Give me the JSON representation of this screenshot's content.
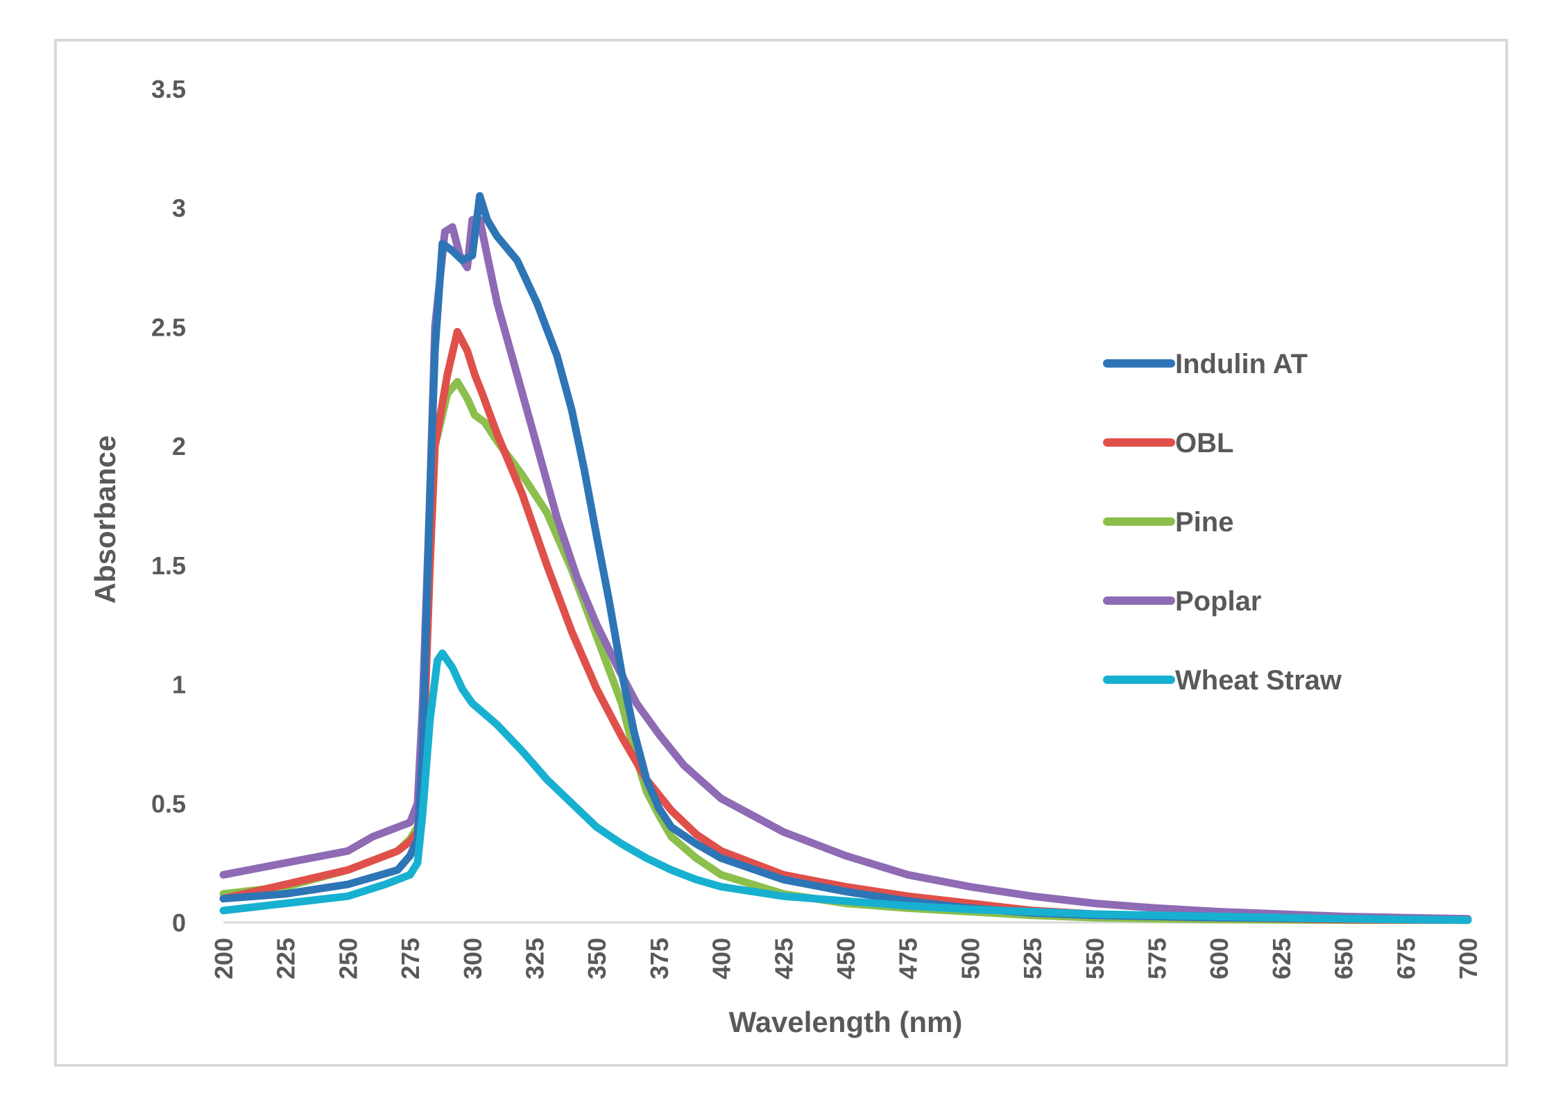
{
  "chart_data": {
    "type": "line",
    "title": "",
    "xlabel": "Wavelength (nm)",
    "ylabel": "Absorbance",
    "xlim": [
      200,
      700
    ],
    "ylim": [
      0,
      3.5
    ],
    "x_ticks": [
      "200",
      "225",
      "250",
      "275",
      "300",
      "325",
      "350",
      "375",
      "400",
      "425",
      "450",
      "475",
      "500",
      "525",
      "550",
      "575",
      "600",
      "625",
      "650",
      "675",
      "700"
    ],
    "y_ticks": [
      "0",
      "0.5",
      "1",
      "1.5",
      "2",
      "2.5",
      "3",
      "3.5"
    ],
    "grid": false,
    "legend_position": "right",
    "series": [
      {
        "name": "Indulin AT",
        "color": "#2e75b6",
        "points": [
          [
            200,
            0.1
          ],
          [
            225,
            0.12
          ],
          [
            250,
            0.16
          ],
          [
            270,
            0.22
          ],
          [
            275,
            0.28
          ],
          [
            278,
            0.35
          ],
          [
            280,
            0.7
          ],
          [
            283,
            1.8
          ],
          [
            285,
            2.4
          ],
          [
            288,
            2.85
          ],
          [
            292,
            2.82
          ],
          [
            296,
            2.78
          ],
          [
            300,
            2.8
          ],
          [
            303,
            3.05
          ],
          [
            306,
            2.95
          ],
          [
            310,
            2.88
          ],
          [
            318,
            2.78
          ],
          [
            326,
            2.6
          ],
          [
            334,
            2.38
          ],
          [
            340,
            2.15
          ],
          [
            345,
            1.9
          ],
          [
            350,
            1.62
          ],
          [
            355,
            1.35
          ],
          [
            360,
            1.05
          ],
          [
            365,
            0.8
          ],
          [
            370,
            0.6
          ],
          [
            375,
            0.48
          ],
          [
            380,
            0.4
          ],
          [
            390,
            0.33
          ],
          [
            400,
            0.27
          ],
          [
            425,
            0.18
          ],
          [
            450,
            0.13
          ],
          [
            475,
            0.09
          ],
          [
            500,
            0.06
          ],
          [
            525,
            0.04
          ],
          [
            550,
            0.03
          ],
          [
            575,
            0.025
          ],
          [
            600,
            0.02
          ],
          [
            650,
            0.015
          ],
          [
            700,
            0.01
          ]
        ]
      },
      {
        "name": "OBL",
        "color": "#e0504a",
        "points": [
          [
            200,
            0.1
          ],
          [
            225,
            0.16
          ],
          [
            250,
            0.22
          ],
          [
            270,
            0.3
          ],
          [
            275,
            0.34
          ],
          [
            278,
            0.38
          ],
          [
            280,
            0.6
          ],
          [
            283,
            1.5
          ],
          [
            285,
            2.0
          ],
          [
            290,
            2.3
          ],
          [
            294,
            2.48
          ],
          [
            298,
            2.4
          ],
          [
            301,
            2.3
          ],
          [
            304,
            2.22
          ],
          [
            310,
            2.05
          ],
          [
            320,
            1.8
          ],
          [
            330,
            1.5
          ],
          [
            340,
            1.22
          ],
          [
            350,
            0.98
          ],
          [
            360,
            0.78
          ],
          [
            370,
            0.6
          ],
          [
            380,
            0.47
          ],
          [
            390,
            0.37
          ],
          [
            400,
            0.3
          ],
          [
            425,
            0.2
          ],
          [
            450,
            0.15
          ],
          [
            475,
            0.11
          ],
          [
            500,
            0.08
          ],
          [
            525,
            0.05
          ],
          [
            550,
            0.035
          ],
          [
            575,
            0.025
          ],
          [
            600,
            0.02
          ],
          [
            650,
            0.012
          ],
          [
            700,
            0.01
          ]
        ]
      },
      {
        "name": "Pine",
        "color": "#8cbf4c",
        "points": [
          [
            200,
            0.12
          ],
          [
            225,
            0.15
          ],
          [
            250,
            0.22
          ],
          [
            270,
            0.3
          ],
          [
            275,
            0.35
          ],
          [
            278,
            0.4
          ],
          [
            280,
            0.6
          ],
          [
            283,
            1.5
          ],
          [
            285,
            2.0
          ],
          [
            290,
            2.22
          ],
          [
            294,
            2.27
          ],
          [
            298,
            2.2
          ],
          [
            301,
            2.13
          ],
          [
            305,
            2.1
          ],
          [
            310,
            2.02
          ],
          [
            320,
            1.88
          ],
          [
            330,
            1.72
          ],
          [
            340,
            1.48
          ],
          [
            350,
            1.2
          ],
          [
            360,
            0.92
          ],
          [
            365,
            0.72
          ],
          [
            370,
            0.55
          ],
          [
            375,
            0.45
          ],
          [
            380,
            0.36
          ],
          [
            390,
            0.27
          ],
          [
            400,
            0.2
          ],
          [
            425,
            0.12
          ],
          [
            450,
            0.08
          ],
          [
            475,
            0.06
          ],
          [
            500,
            0.045
          ],
          [
            525,
            0.03
          ],
          [
            550,
            0.02
          ],
          [
            575,
            0.015
          ],
          [
            600,
            0.012
          ],
          [
            650,
            0.01
          ],
          [
            700,
            0.01
          ]
        ]
      },
      {
        "name": "Poplar",
        "color": "#8e6bb4",
        "points": [
          [
            200,
            0.2
          ],
          [
            225,
            0.25
          ],
          [
            250,
            0.3
          ],
          [
            260,
            0.36
          ],
          [
            270,
            0.4
          ],
          [
            275,
            0.42
          ],
          [
            278,
            0.5
          ],
          [
            280,
            0.9
          ],
          [
            283,
            1.8
          ],
          [
            285,
            2.5
          ],
          [
            289,
            2.9
          ],
          [
            292,
            2.92
          ],
          [
            295,
            2.8
          ],
          [
            298,
            2.75
          ],
          [
            300,
            2.95
          ],
          [
            303,
            2.95
          ],
          [
            306,
            2.8
          ],
          [
            310,
            2.6
          ],
          [
            318,
            2.3
          ],
          [
            326,
            2.0
          ],
          [
            334,
            1.7
          ],
          [
            342,
            1.45
          ],
          [
            350,
            1.25
          ],
          [
            358,
            1.08
          ],
          [
            366,
            0.92
          ],
          [
            375,
            0.79
          ],
          [
            385,
            0.66
          ],
          [
            400,
            0.52
          ],
          [
            425,
            0.38
          ],
          [
            450,
            0.28
          ],
          [
            475,
            0.2
          ],
          [
            500,
            0.15
          ],
          [
            525,
            0.11
          ],
          [
            550,
            0.08
          ],
          [
            575,
            0.06
          ],
          [
            600,
            0.045
          ],
          [
            650,
            0.025
          ],
          [
            700,
            0.015
          ]
        ]
      },
      {
        "name": "Wheat Straw",
        "color": "#18b0d0",
        "points": [
          [
            200,
            0.05
          ],
          [
            225,
            0.08
          ],
          [
            250,
            0.11
          ],
          [
            265,
            0.16
          ],
          [
            275,
            0.2
          ],
          [
            278,
            0.25
          ],
          [
            280,
            0.45
          ],
          [
            283,
            0.85
          ],
          [
            286,
            1.1
          ],
          [
            288,
            1.13
          ],
          [
            292,
            1.07
          ],
          [
            296,
            0.98
          ],
          [
            300,
            0.92
          ],
          [
            310,
            0.83
          ],
          [
            320,
            0.72
          ],
          [
            330,
            0.6
          ],
          [
            340,
            0.5
          ],
          [
            350,
            0.4
          ],
          [
            360,
            0.33
          ],
          [
            370,
            0.27
          ],
          [
            380,
            0.22
          ],
          [
            390,
            0.18
          ],
          [
            400,
            0.15
          ],
          [
            425,
            0.11
          ],
          [
            450,
            0.09
          ],
          [
            475,
            0.07
          ],
          [
            500,
            0.055
          ],
          [
            525,
            0.045
          ],
          [
            550,
            0.035
          ],
          [
            575,
            0.03
          ],
          [
            600,
            0.025
          ],
          [
            650,
            0.015
          ],
          [
            700,
            0.01
          ]
        ]
      }
    ]
  }
}
